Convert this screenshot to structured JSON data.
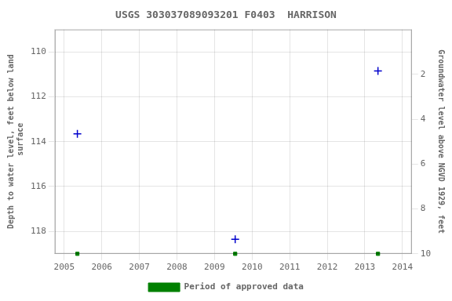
{
  "chart_data": {
    "type": "scatter",
    "title": "USGS 303037089093201 F0403  HARRISON",
    "y_label": "Depth to water level, feet below land\n surface",
    "y2_label": "Groundwater level above NGVD 1929, feet",
    "xlim": [
      2004.75,
      2014.25
    ],
    "xticks": [
      2005,
      2006,
      2007,
      2008,
      2009,
      2010,
      2011,
      2012,
      2013,
      2014
    ],
    "ylim": [
      119.0,
      109.0
    ],
    "yticks": [
      110,
      112,
      114,
      116,
      118
    ],
    "y2lim": [
      10.0,
      0.0
    ],
    "y2ticks": [
      10,
      8,
      6,
      4,
      2
    ],
    "grid": true,
    "legend": "bottom",
    "series": [
      {
        "color": "#0000cc",
        "marker": "plus",
        "x": [
          2005.35,
          2009.55,
          2013.35
        ],
        "values": [
          113.65,
          118.35,
          110.85
        ]
      },
      {
        "name": "Period of approved data",
        "color": "#008000",
        "marker": "square",
        "x": [
          2005.35,
          2009.55,
          2013.35
        ],
        "values": [
          119.0,
          119.0,
          119.0
        ]
      }
    ]
  }
}
